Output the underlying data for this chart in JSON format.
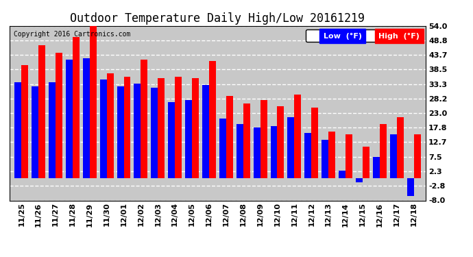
{
  "title": "Outdoor Temperature Daily High/Low 20161219",
  "copyright": "Copyright 2016 Cartronics.com",
  "categories": [
    "11/25",
    "11/26",
    "11/27",
    "11/28",
    "11/29",
    "11/30",
    "12/01",
    "12/02",
    "12/03",
    "12/04",
    "12/05",
    "12/06",
    "12/07",
    "12/08",
    "12/09",
    "12/10",
    "12/11",
    "12/12",
    "12/13",
    "12/14",
    "12/15",
    "12/16",
    "12/17",
    "12/18"
  ],
  "high_values": [
    40.0,
    47.0,
    44.5,
    50.0,
    54.0,
    37.0,
    36.0,
    42.0,
    35.5,
    36.0,
    35.5,
    41.5,
    29.0,
    26.5,
    27.5,
    25.5,
    29.5,
    25.0,
    16.5,
    15.5,
    11.0,
    19.0,
    21.5,
    15.5
  ],
  "low_values": [
    34.0,
    32.5,
    34.0,
    42.0,
    42.5,
    35.0,
    32.5,
    33.5,
    32.0,
    27.0,
    27.5,
    33.0,
    21.0,
    19.0,
    18.0,
    18.5,
    21.5,
    16.0,
    13.5,
    2.5,
    -1.5,
    7.5,
    15.5,
    -6.5
  ],
  "high_color": "#ff0000",
  "low_color": "#0000ff",
  "bg_color": "#ffffff",
  "plot_bg_color": "#c8c8c8",
  "ylim": [
    -8.0,
    54.0
  ],
  "yticks": [
    -8.0,
    -2.8,
    2.3,
    7.5,
    12.7,
    17.8,
    23.0,
    28.2,
    33.3,
    38.5,
    43.7,
    48.8,
    54.0
  ],
  "ytick_labels": [
    "-8.0",
    "-2.8",
    "2.3",
    "7.5",
    "12.7",
    "17.8",
    "23.0",
    "28.2",
    "33.3",
    "38.5",
    "43.7",
    "48.8",
    "54.0"
  ],
  "bar_width": 0.4,
  "legend_low_label": "Low  (°F)",
  "legend_high_label": "High  (°F)",
  "title_fontsize": 12,
  "copyright_fontsize": 7,
  "tick_fontsize": 8,
  "legend_fontsize": 8
}
